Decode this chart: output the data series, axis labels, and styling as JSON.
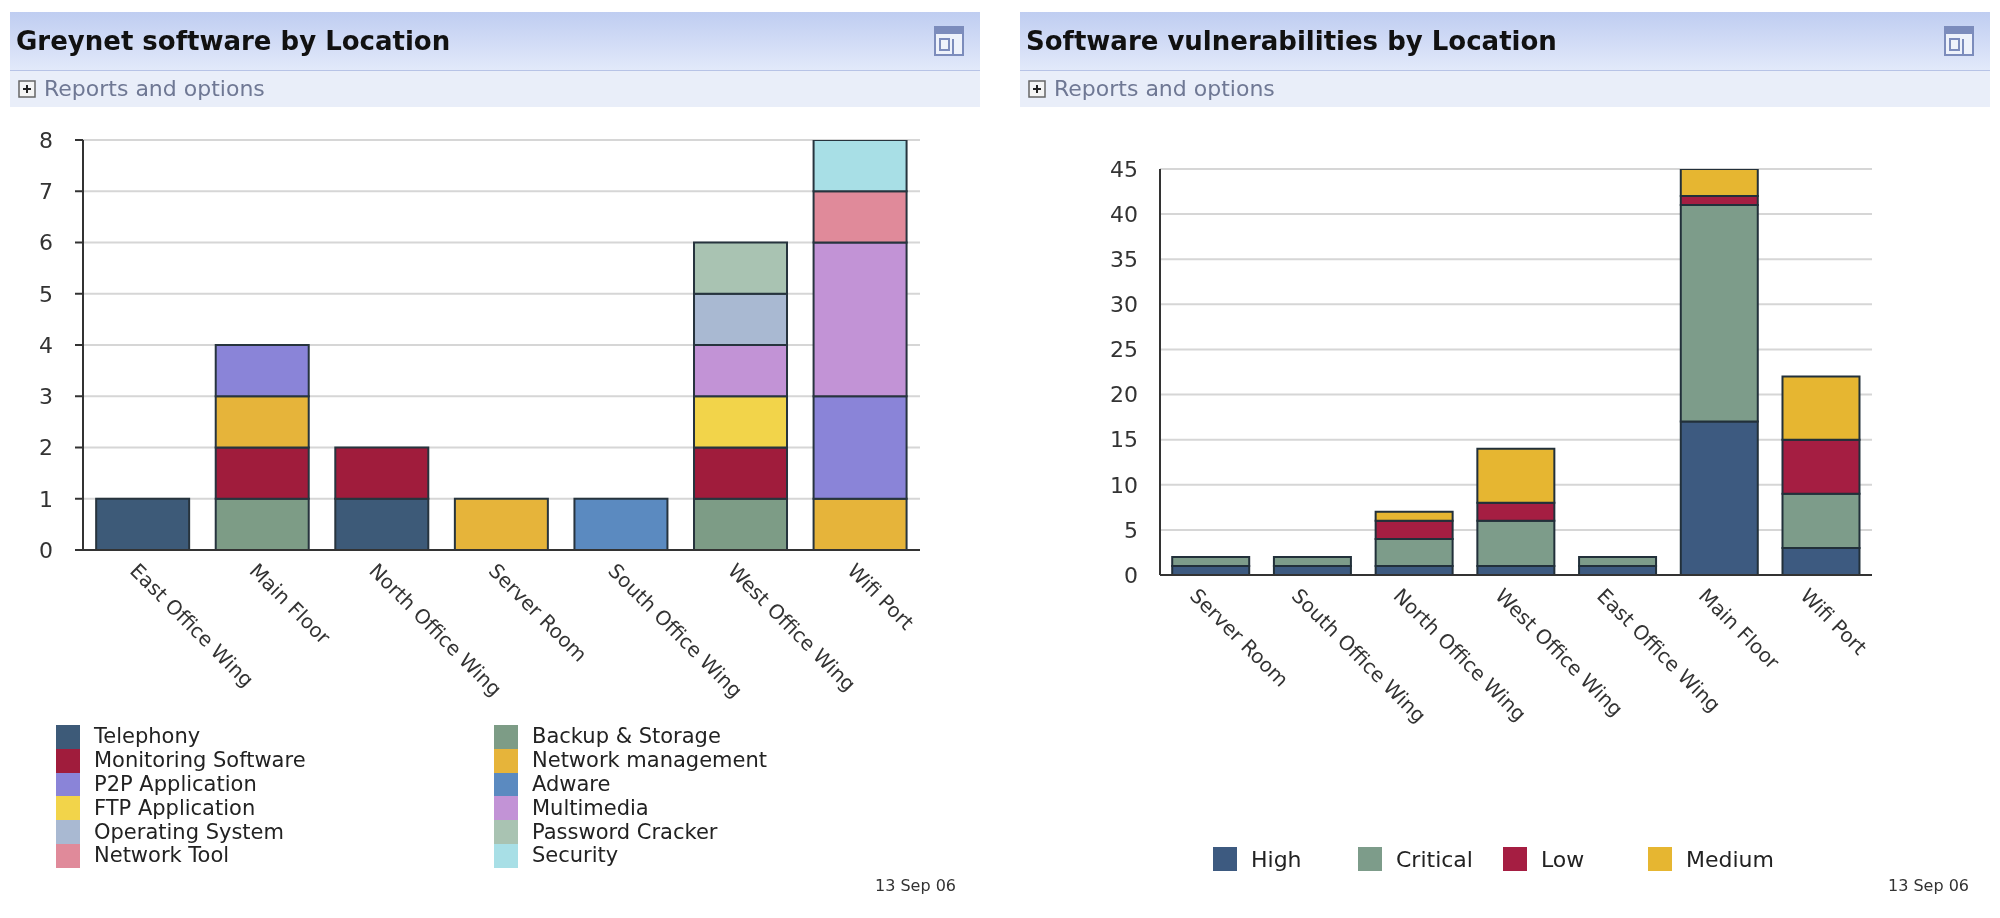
{
  "chart_data": [
    {
      "type": "bar",
      "title": "Greynet software by Location",
      "subtitle": "Reports and options",
      "categories": [
        "East Office Wing",
        "Main Floor",
        "North Office Wing",
        "Server Room",
        "South Office Wing",
        "West Office Wing",
        "Wifi Port"
      ],
      "series": [
        {
          "name": "Telephony",
          "color": "#3d5a78",
          "values": [
            1,
            0,
            1,
            0,
            0,
            0,
            0
          ]
        },
        {
          "name": "Backup & Storage",
          "color": "#7d9c86",
          "values": [
            0,
            1,
            0,
            0,
            0,
            1,
            0
          ]
        },
        {
          "name": "Monitoring Software",
          "color": "#a01c3c",
          "values": [
            0,
            1,
            1,
            0,
            0,
            1,
            0
          ]
        },
        {
          "name": "Network management",
          "color": "#e6b43a",
          "values": [
            0,
            1,
            0,
            1,
            0,
            0,
            1
          ]
        },
        {
          "name": "P2P Application",
          "color": "#8a84d8",
          "values": [
            0,
            1,
            0,
            0,
            0,
            0,
            2
          ]
        },
        {
          "name": "Adware",
          "color": "#5b8ac0",
          "values": [
            0,
            0,
            0,
            0,
            1,
            0,
            0
          ]
        },
        {
          "name": "FTP Application",
          "color": "#f2d44a",
          "values": [
            0,
            0,
            0,
            0,
            0,
            1,
            0
          ]
        },
        {
          "name": "Multimedia",
          "color": "#c293d6",
          "values": [
            0,
            0,
            0,
            0,
            0,
            1,
            3
          ]
        },
        {
          "name": "Operating System",
          "color": "#a9b9d2",
          "values": [
            0,
            0,
            0,
            0,
            0,
            1,
            0
          ]
        },
        {
          "name": "Password Cracker",
          "color": "#a9c3b2",
          "values": [
            0,
            0,
            0,
            0,
            0,
            1,
            0
          ]
        },
        {
          "name": "Network Tool",
          "color": "#e08a9a",
          "values": [
            0,
            0,
            0,
            0,
            0,
            0,
            1
          ]
        },
        {
          "name": "Security",
          "color": "#a8dfe6",
          "values": [
            0,
            0,
            0,
            0,
            0,
            0,
            1
          ]
        }
      ],
      "stacked": true,
      "ylim": [
        0,
        8
      ],
      "yticks": [
        0,
        1,
        2,
        3,
        4,
        5,
        6,
        7,
        8
      ],
      "grid": "y",
      "legend": "bottom",
      "annotations": [
        "13 Sep 06"
      ]
    },
    {
      "type": "bar",
      "title": "Software vulnerabilities by Location",
      "subtitle": "Reports and options",
      "categories": [
        "Server Room",
        "South Office Wing",
        "North Office Wing",
        "West Office Wing",
        "East Office Wing",
        "Main Floor",
        "Wifi Port"
      ],
      "series": [
        {
          "name": "High",
          "color": "#3d5a80",
          "values": [
            1,
            1,
            1,
            1,
            1,
            17,
            3
          ]
        },
        {
          "name": "Critical",
          "color": "#7d9c8a",
          "values": [
            1,
            1,
            3,
            5,
            1,
            24,
            6
          ]
        },
        {
          "name": "Low",
          "color": "#a51e42",
          "values": [
            0,
            0,
            2,
            2,
            0,
            1,
            6
          ]
        },
        {
          "name": "Medium",
          "color": "#e6b631",
          "values": [
            0,
            0,
            1,
            6,
            0,
            3,
            7
          ]
        }
      ],
      "stacked": true,
      "ylim": [
        0,
        45
      ],
      "yticks": [
        0,
        5,
        10,
        15,
        20,
        25,
        30,
        35,
        40,
        45
      ],
      "grid": "y",
      "legend": "bottom",
      "annotations": [
        "13 Sep 06"
      ]
    }
  ]
}
